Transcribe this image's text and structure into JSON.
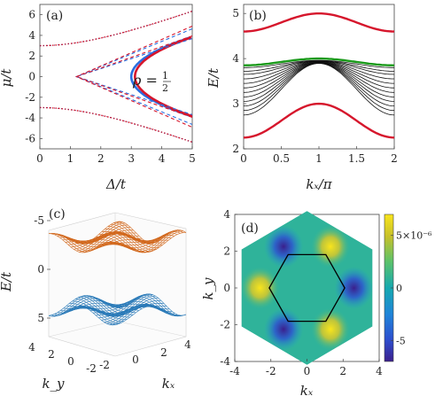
{
  "chart_data": [
    {
      "panel": "(a)",
      "type": "line",
      "xlabel": "Δ/t",
      "ylabel": "μ/t",
      "xlim": [
        0,
        5
      ],
      "ylim": [
        -7,
        7
      ],
      "xticks": [
        "0",
        "1",
        "2",
        "3",
        "4",
        "5"
      ],
      "yticks": [
        "-6",
        "-4",
        "-2",
        "0",
        "2",
        "4",
        "6"
      ],
      "annotation": "ρ = 1/2",
      "colors": {
        "thick_red": "#d6162c",
        "thick_blue": "#2a6ee0",
        "dash_red": "#d6162c",
        "dash_blue": "#2a6ee0",
        "dotted": "#7a1a55"
      },
      "series": [
        {
          "style": "solid",
          "x": [
            5.0,
            4.2,
            3.6,
            3.2,
            3.0,
            3.2,
            3.6,
            4.2,
            5.0
          ],
          "y": [
            3.8,
            2.8,
            1.9,
            1.0,
            0.0,
            -1.0,
            -1.9,
            -2.8,
            -3.9
          ]
        },
        {
          "style": "dashed",
          "x": [
            5.0,
            4.0,
            3.0,
            2.0,
            1.2,
            2.0,
            3.0,
            4.0,
            5.0
          ],
          "y": [
            4.5,
            3.6,
            2.6,
            1.3,
            0.0,
            -1.3,
            -2.6,
            -3.6,
            -4.7
          ]
        },
        {
          "style": "dotted",
          "x": [
            0,
            1,
            2,
            3,
            4,
            5
          ],
          "y": [
            3.0,
            3.4,
            4.1,
            4.8,
            5.6,
            6.3
          ]
        },
        {
          "style": "dotted",
          "x": [
            0,
            1,
            2,
            3,
            4,
            5
          ],
          "y": [
            -3.0,
            -3.4,
            -4.1,
            -4.8,
            -5.6,
            -6.3
          ]
        }
      ]
    },
    {
      "panel": "(b)",
      "type": "line",
      "xlabel": "kₓ/π",
      "ylabel": "E/t",
      "xlim": [
        0,
        2
      ],
      "ylim": [
        2,
        5.2
      ],
      "xticks": [
        "0",
        "0.5",
        "1",
        "1.5",
        "2"
      ],
      "yticks": [
        "2",
        "3",
        "4",
        "5"
      ],
      "series": [
        {
          "color": "#d6162c",
          "x": [
            0,
            0.5,
            1,
            1.5,
            2
          ],
          "y": [
            4.6,
            4.8,
            5.0,
            4.8,
            4.6
          ]
        },
        {
          "color": "#d6162c",
          "x": [
            0,
            0.5,
            1,
            1.5,
            2
          ],
          "y": [
            2.25,
            2.6,
            3.0,
            2.6,
            2.25
          ]
        },
        {
          "color": "#1a9a1a",
          "x": [
            0,
            0.5,
            1,
            1.5,
            2
          ],
          "y": [
            3.85,
            3.93,
            4.0,
            3.93,
            3.85
          ]
        },
        {
          "color": "#000000",
          "group": "bulk bands",
          "x": [
            0,
            0.5,
            1,
            1.5,
            2
          ],
          "y_at_k0": [
            2.75,
            2.85,
            2.95,
            3.05,
            3.15,
            3.25,
            3.35,
            3.45,
            3.55,
            3.65,
            3.72,
            3.8
          ],
          "y_at_k1": 3.93
        }
      ]
    },
    {
      "panel": "(c)",
      "type": "surface",
      "xlabel": "kₓ",
      "ylabel": "k_y",
      "zlabel": "E/t",
      "zticks": [
        "-5",
        "0",
        "5"
      ],
      "kx_ticks": [
        "-2",
        "0",
        "2",
        "4"
      ],
      "ky_ticks": [
        "4",
        "2",
        "0",
        "-2"
      ],
      "series": [
        {
          "name": "upper band",
          "color": "#d2691e",
          "z_range": [
            2.5,
            4.5
          ]
        },
        {
          "name": "lower band",
          "color": "#2a7ab8",
          "z_range": [
            -4.5,
            -2.5
          ]
        }
      ]
    },
    {
      "panel": "(d)",
      "type": "heatmap",
      "xlabel": "kₓ",
      "ylabel": "k_y",
      "xlim": [
        -4,
        4
      ],
      "ylim": [
        -4,
        4
      ],
      "xticks": [
        "-4",
        "-2",
        "0",
        "2",
        "4"
      ],
      "yticks": [
        "-4",
        "-2",
        "0",
        "2",
        "4"
      ],
      "colorbar": {
        "ticks": [
          "5×10⁻⁶",
          "0",
          "-5"
        ],
        "range": [
          -7e-06,
          7e-06
        ]
      },
      "zone": {
        "outer_hex_vertex_radius": 4.19,
        "inner_hex_vertex_radius": 2.09
      },
      "extrema": [
        {
          "kx": 2.6,
          "ky": 0.0,
          "sign": "min"
        },
        {
          "kx": -2.6,
          "ky": 0.0,
          "sign": "max"
        },
        {
          "kx": 1.3,
          "ky": 2.25,
          "sign": "max"
        },
        {
          "kx": -1.3,
          "ky": 2.25,
          "sign": "min"
        },
        {
          "kx": 1.3,
          "ky": -2.25,
          "sign": "max"
        },
        {
          "kx": -1.3,
          "ky": -2.25,
          "sign": "min"
        }
      ]
    }
  ]
}
